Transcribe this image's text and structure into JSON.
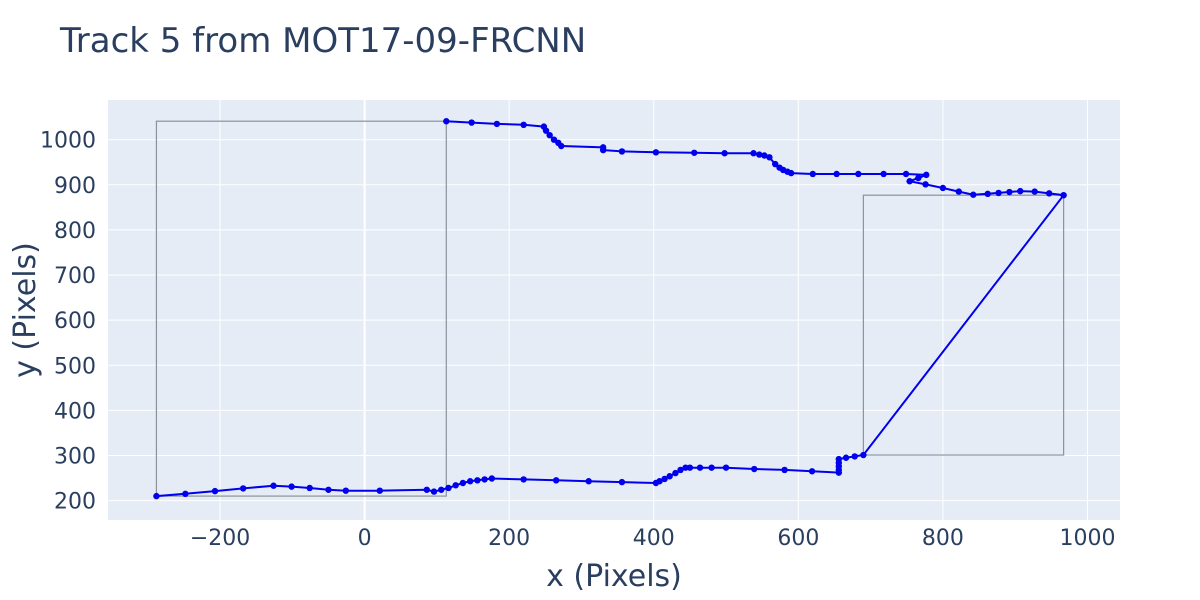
{
  "chart_data": {
    "type": "line",
    "title": "Track 5 from MOT17-09-FRCNN",
    "xlabel": "x (Pixels)",
    "ylabel": "y (Pixels)",
    "xlim": [
      -355,
      1045
    ],
    "ylim": [
      157,
      1088
    ],
    "x_ticks": [
      -200,
      0,
      200,
      400,
      600,
      800,
      1000
    ],
    "y_ticks": [
      200,
      300,
      400,
      500,
      600,
      700,
      800,
      900,
      1000
    ],
    "x_tick_labels": [
      "−200",
      "0",
      "200",
      "400",
      "600",
      "800",
      "1000"
    ],
    "y_tick_labels": [
      "200",
      "300",
      "400",
      "500",
      "600",
      "700",
      "800",
      "900",
      "1000"
    ],
    "grid": true,
    "colors": {
      "trajectory": "#0000ee",
      "box": "#8a929c",
      "plot_background": "#e5ecf6",
      "grid": "#ffffff",
      "text": "#2a3f5f"
    },
    "boxes": [
      {
        "x0": -288,
        "y0": 210,
        "x1": 113,
        "y1": 1041
      },
      {
        "x0": 690,
        "y0": 301,
        "x1": 967,
        "y1": 877
      }
    ],
    "series": [
      {
        "mode": "lines+markers",
        "points": [
          [
            -288,
            210
          ],
          [
            -248,
            215
          ],
          [
            -207,
            221
          ],
          [
            -168,
            227
          ],
          [
            -126,
            233
          ],
          [
            -101,
            231
          ],
          [
            -76,
            228
          ],
          [
            -50,
            224
          ],
          [
            -26,
            222
          ],
          [
            21,
            222
          ],
          [
            86,
            224
          ],
          [
            96,
            220
          ],
          [
            106,
            224
          ],
          [
            116,
            228
          ],
          [
            126,
            234
          ],
          [
            136,
            239
          ],
          [
            146,
            243
          ],
          [
            156,
            245
          ],
          [
            166,
            247
          ],
          [
            176,
            249
          ],
          [
            220,
            247
          ],
          [
            265,
            245
          ],
          [
            310,
            243
          ],
          [
            356,
            241
          ],
          [
            403,
            239
          ],
          [
            408,
            243
          ],
          [
            415,
            248
          ],
          [
            422,
            254
          ],
          [
            430,
            261
          ],
          [
            437,
            268
          ],
          [
            444,
            273
          ],
          [
            450,
            273
          ],
          [
            464,
            273
          ],
          [
            480,
            273
          ],
          [
            500,
            273
          ],
          [
            539,
            270
          ],
          [
            581,
            268
          ],
          [
            619,
            265
          ],
          [
            656,
            262
          ],
          [
            656,
            268
          ],
          [
            656,
            276
          ],
          [
            656,
            284
          ],
          [
            656,
            292
          ],
          [
            666,
            295
          ],
          [
            678,
            298
          ],
          [
            690,
            301
          ],
          [
            967,
            877
          ],
          [
            947,
            881
          ],
          [
            927,
            885
          ],
          [
            907,
            886
          ],
          [
            892,
            884
          ],
          [
            877,
            882
          ],
          [
            862,
            880
          ],
          [
            842,
            878
          ],
          [
            822,
            885
          ],
          [
            800,
            893
          ],
          [
            776,
            901
          ],
          [
            754,
            908
          ],
          [
            766,
            915
          ],
          [
            777,
            922
          ],
          [
            749,
            924
          ],
          [
            718,
            924
          ],
          [
            683,
            924
          ],
          [
            653,
            924
          ],
          [
            620,
            924
          ],
          [
            590,
            926
          ],
          [
            585,
            929
          ],
          [
            579,
            933
          ],
          [
            574,
            938
          ],
          [
            568,
            946
          ],
          [
            560,
            961
          ],
          [
            553,
            965
          ],
          [
            546,
            967
          ],
          [
            538,
            970
          ],
          [
            498,
            970
          ],
          [
            456,
            971
          ],
          [
            403,
            972
          ],
          [
            356,
            974
          ],
          [
            330,
            977
          ],
          [
            330,
            983
          ],
          [
            272,
            986
          ],
          [
            268,
            993
          ],
          [
            262,
            1000
          ],
          [
            256,
            1010
          ],
          [
            251,
            1020
          ],
          [
            248,
            1029
          ],
          [
            220,
            1033
          ],
          [
            183,
            1035
          ],
          [
            148,
            1038
          ],
          [
            113,
            1041
          ]
        ]
      }
    ]
  }
}
